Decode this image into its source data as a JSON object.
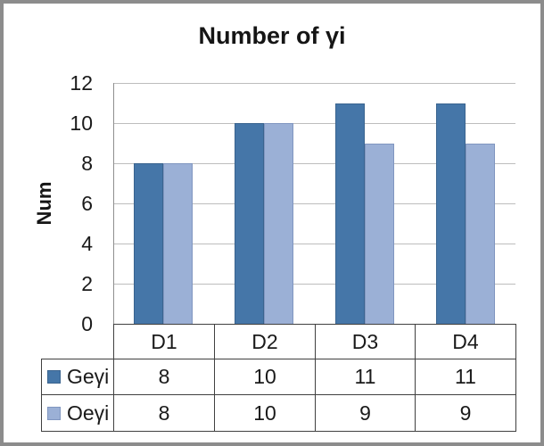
{
  "window": {
    "frame_color": "#8c8c8c",
    "background": "#ffffff"
  },
  "chart_data": {
    "type": "bar",
    "title": "Number of γi",
    "ylabel": "Num",
    "xlabel": "",
    "categories": [
      "D1",
      "D2",
      "D3",
      "D4"
    ],
    "series": [
      {
        "name": "Geγi",
        "values": [
          8,
          10,
          11,
          11
        ],
        "color": "#4576A8",
        "border_color": "#3A648F"
      },
      {
        "name": "Oeγi",
        "values": [
          8,
          10,
          9,
          9
        ],
        "color": "#9BB0D6",
        "border_color": "#8096C0"
      }
    ],
    "ylim": [
      0,
      12
    ],
    "yticks": [
      0,
      2,
      4,
      6,
      8,
      10,
      12
    ],
    "grid": true,
    "legend_position": "data-table-left-column",
    "data_table_shown": true
  },
  "colors": {
    "gridline": "#BDBDBD",
    "axis": "#8F8F8F",
    "table_border": "#404040",
    "text": "#1A1A1A"
  }
}
